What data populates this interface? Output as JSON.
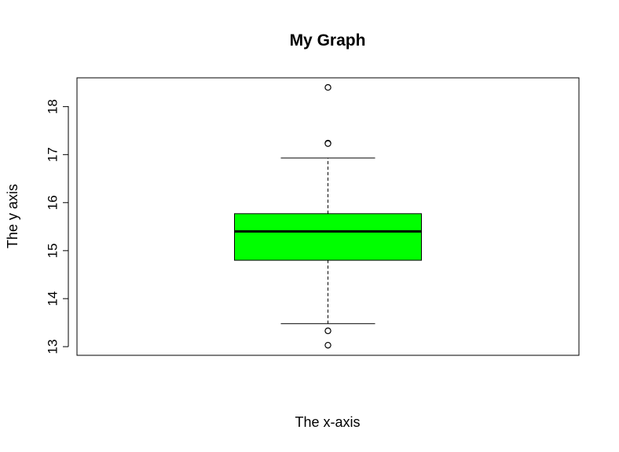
{
  "chart_data": {
    "type": "boxplot",
    "title": "My Graph",
    "xlabel": "The x-axis",
    "ylabel": "The y axis",
    "ylim": [
      12.82,
      18.6
    ],
    "yticks": [
      13,
      14,
      15,
      16,
      17,
      18
    ],
    "ytick_labels": [
      "13",
      "14",
      "15",
      "16",
      "17",
      "18"
    ],
    "grid": false,
    "legend": "none",
    "box": {
      "fill_color": "#00ff00",
      "border_color": "#000000",
      "lower_whisker": 13.48,
      "q1": 14.8,
      "median": 15.4,
      "q3": 15.77,
      "upper_whisker": 16.93,
      "outliers": [
        18.4,
        17.24,
        17.23,
        13.33,
        13.03
      ]
    }
  }
}
